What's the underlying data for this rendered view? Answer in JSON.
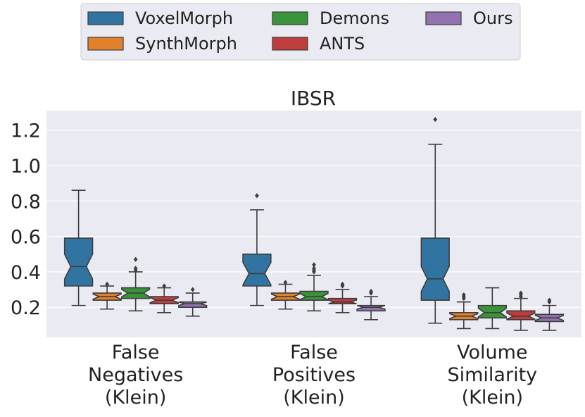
{
  "chart_data": {
    "type": "boxplot",
    "title": "IBSR",
    "xlabel": "",
    "ylabel": "",
    "ylim": [
      0.03,
      1.31
    ],
    "yticks": [
      "0.2",
      "0.4",
      "0.6",
      "0.8",
      "1.0",
      "1.2"
    ],
    "ytick_values": [
      0.2,
      0.4,
      0.6,
      0.8,
      1.0,
      1.2
    ],
    "grid": true,
    "legend_position": "top-center",
    "categories": [
      [
        "False",
        "Negatives",
        "(Klein)"
      ],
      [
        "False",
        "Positives",
        "(Klein)"
      ],
      [
        "Volume",
        "Similarity",
        "(Klein)"
      ]
    ],
    "series": [
      {
        "name": "VoxelMorph",
        "color": "#3274a1",
        "stats": [
          {
            "whislo": 0.21,
            "q1": 0.32,
            "med": 0.43,
            "q3": 0.59,
            "whishi": 0.86,
            "fliers": []
          },
          {
            "whislo": 0.21,
            "q1": 0.32,
            "med": 0.39,
            "q3": 0.5,
            "whishi": 0.75,
            "fliers": [
              0.83
            ]
          },
          {
            "whislo": 0.11,
            "q1": 0.24,
            "med": 0.36,
            "q3": 0.59,
            "whishi": 1.12,
            "fliers": [
              1.26
            ]
          }
        ]
      },
      {
        "name": "SynthMorph",
        "color": "#e1812c",
        "stats": [
          {
            "whislo": 0.19,
            "q1": 0.24,
            "med": 0.26,
            "q3": 0.28,
            "whishi": 0.32,
            "fliers": [
              0.33
            ]
          },
          {
            "whislo": 0.19,
            "q1": 0.24,
            "med": 0.26,
            "q3": 0.28,
            "whishi": 0.33,
            "fliers": [
              0.34
            ]
          },
          {
            "whislo": 0.08,
            "q1": 0.13,
            "med": 0.15,
            "q3": 0.17,
            "whishi": 0.23,
            "fliers": [
              0.25,
              0.26,
              0.27
            ]
          }
        ]
      },
      {
        "name": "Demons",
        "color": "#3a923a",
        "stats": [
          {
            "whislo": 0.18,
            "q1": 0.25,
            "med": 0.28,
            "q3": 0.31,
            "whishi": 0.4,
            "fliers": [
              0.41,
              0.42,
              0.47
            ]
          },
          {
            "whislo": 0.18,
            "q1": 0.24,
            "med": 0.26,
            "q3": 0.29,
            "whishi": 0.38,
            "fliers": [
              0.4,
              0.41,
              0.42,
              0.44
            ]
          },
          {
            "whislo": 0.08,
            "q1": 0.14,
            "med": 0.17,
            "q3": 0.21,
            "whishi": 0.31,
            "fliers": []
          }
        ]
      },
      {
        "name": "ANTS",
        "color": "#c03d3e",
        "stats": [
          {
            "whislo": 0.17,
            "q1": 0.22,
            "med": 0.24,
            "q3": 0.26,
            "whishi": 0.31,
            "fliers": [
              0.32
            ]
          },
          {
            "whislo": 0.17,
            "q1": 0.22,
            "med": 0.23,
            "q3": 0.25,
            "whishi": 0.3,
            "fliers": [
              0.32,
              0.33
            ]
          },
          {
            "whislo": 0.07,
            "q1": 0.13,
            "med": 0.15,
            "q3": 0.18,
            "whishi": 0.25,
            "fliers": [
              0.26,
              0.27,
              0.28
            ]
          }
        ]
      },
      {
        "name": "Ours",
        "color": "#9372b2",
        "stats": [
          {
            "whislo": 0.15,
            "q1": 0.2,
            "med": 0.22,
            "q3": 0.23,
            "whishi": 0.28,
            "fliers": [
              0.3
            ]
          },
          {
            "whislo": 0.13,
            "q1": 0.18,
            "med": 0.2,
            "q3": 0.21,
            "whishi": 0.26,
            "fliers": [
              0.28,
              0.29
            ]
          },
          {
            "whislo": 0.07,
            "q1": 0.12,
            "med": 0.14,
            "q3": 0.16,
            "whishi": 0.21,
            "fliers": [
              0.23,
              0.24
            ]
          }
        ]
      }
    ]
  }
}
